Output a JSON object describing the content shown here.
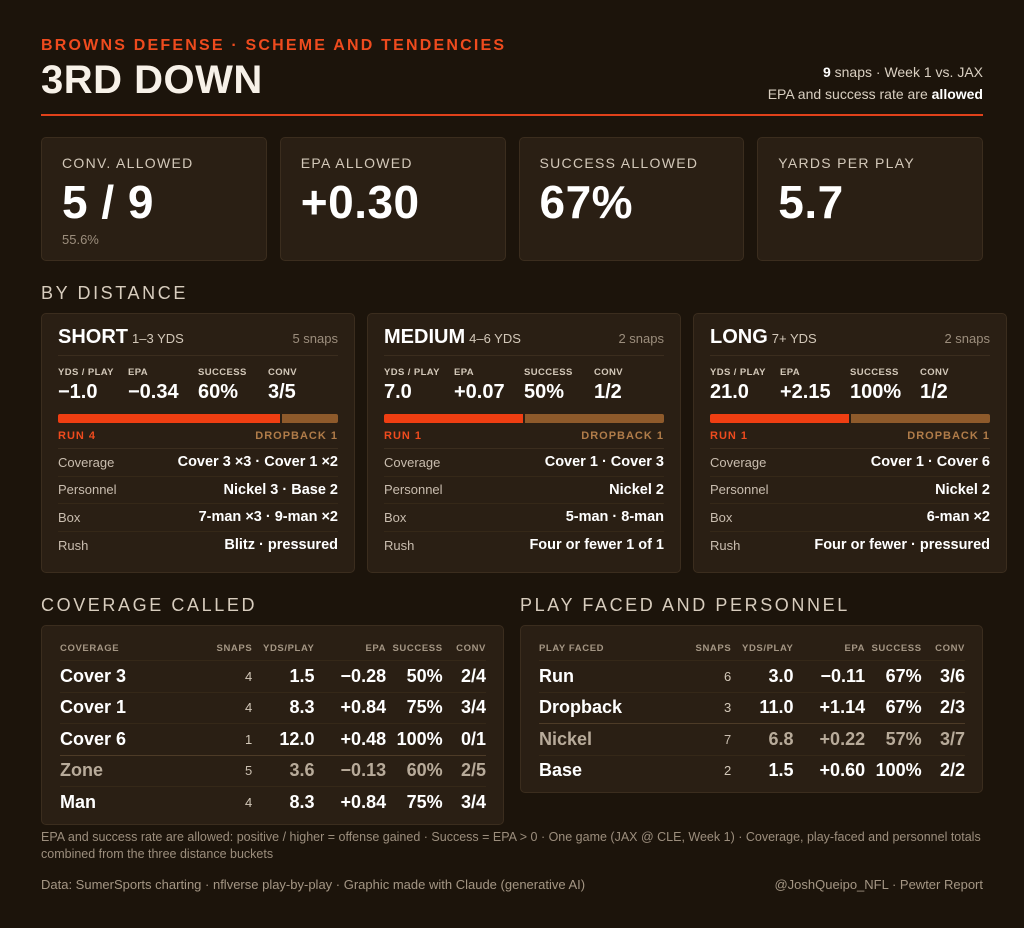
{
  "header": {
    "kicker": "BROWNS DEFENSE · SCHEME AND TENDENCIES",
    "title": "3RD DOWN",
    "snaps": "9",
    "snaps_suffix": " snaps · Week 1 vs. JAX",
    "epa_note_prefix": "EPA and success rate are ",
    "epa_note_bold": "allowed"
  },
  "stats": [
    {
      "label": "CONV. ALLOWED",
      "value": "5 / 9",
      "sub": "55.6%"
    },
    {
      "label": "EPA ALLOWED",
      "value": "+0.30",
      "sub": ""
    },
    {
      "label": "SUCCESS ALLOWED",
      "value": "67%",
      "sub": ""
    },
    {
      "label": "YARDS PER PLAY",
      "value": "5.7",
      "sub": ""
    }
  ],
  "sections": {
    "by_distance": "BY DISTANCE",
    "coverage": "COVERAGE CALLED",
    "play_faced": "PLAY FACED AND PERSONNEL"
  },
  "distance": [
    {
      "name": "SHORT",
      "range": "1–3 YDS",
      "snaps": "5 snaps",
      "stat_labels": [
        "YDS / PLAY",
        "EPA",
        "SUCCESS",
        "CONV"
      ],
      "stat_values": [
        "−1.0",
        "−0.34",
        "60%",
        "3/5"
      ],
      "run_share": 0.8,
      "run_label": "RUN 4",
      "dropback_label": "DROPBACK 1",
      "rows": [
        {
          "k": "Coverage",
          "v": "Cover 3 ×3 · Cover 1 ×2"
        },
        {
          "k": "Personnel",
          "v": "Nickel 3 · Base 2"
        },
        {
          "k": "Box",
          "v": "7-man ×3 · 9-man ×2"
        },
        {
          "k": "Rush",
          "v": "Blitz · pressured"
        }
      ]
    },
    {
      "name": "MEDIUM",
      "range": "4–6 YDS",
      "snaps": "2 snaps",
      "stat_labels": [
        "YDS / PLAY",
        "EPA",
        "SUCCESS",
        "CONV"
      ],
      "stat_values": [
        "7.0",
        "+0.07",
        "50%",
        "1/2"
      ],
      "run_share": 0.5,
      "run_label": "RUN 1",
      "dropback_label": "DROPBACK 1",
      "rows": [
        {
          "k": "Coverage",
          "v": "Cover 1 · Cover 3"
        },
        {
          "k": "Personnel",
          "v": "Nickel 2"
        },
        {
          "k": "Box",
          "v": "5-man · 8-man"
        },
        {
          "k": "Rush",
          "v": "Four or fewer 1 of 1"
        }
      ]
    },
    {
      "name": "LONG",
      "range": "7+ YDS",
      "snaps": "2 snaps",
      "stat_labels": [
        "YDS / PLAY",
        "EPA",
        "SUCCESS",
        "CONV"
      ],
      "stat_values": [
        "21.0",
        "+2.15",
        "100%",
        "1/2"
      ],
      "run_share": 0.5,
      "run_label": "RUN 1",
      "dropback_label": "DROPBACK 1",
      "rows": [
        {
          "k": "Coverage",
          "v": "Cover 1 · Cover 6"
        },
        {
          "k": "Personnel",
          "v": "Nickel 2"
        },
        {
          "k": "Box",
          "v": "6-man ×2"
        },
        {
          "k": "Rush",
          "v": "Four or fewer · pressured"
        }
      ]
    }
  ],
  "coverage_table": {
    "headers": [
      "COVERAGE",
      "SNAPS",
      "YDS/PLAY",
      "EPA",
      "SUCCESS",
      "CONV"
    ],
    "rows": [
      {
        "name": "Cover 3",
        "snaps": "4",
        "yds": "1.5",
        "epa": "−0.28",
        "succ": "50%",
        "conv": "2/4"
      },
      {
        "name": "Cover 1",
        "snaps": "4",
        "yds": "8.3",
        "epa": "+0.84",
        "succ": "75%",
        "conv": "3/4"
      },
      {
        "name": "Cover 6",
        "snaps": "1",
        "yds": "12.0",
        "epa": "+0.48",
        "succ": "100%",
        "conv": "0/1"
      },
      {
        "name": "Zone",
        "snaps": "5",
        "yds": "3.6",
        "epa": "−0.13",
        "succ": "60%",
        "conv": "2/5"
      },
      {
        "name": "Man",
        "snaps": "4",
        "yds": "8.3",
        "epa": "+0.84",
        "succ": "75%",
        "conv": "3/4"
      }
    ]
  },
  "play_table": {
    "headers": [
      "PLAY FACED",
      "SNAPS",
      "YDS/PLAY",
      "EPA",
      "SUCCESS",
      "CONV"
    ],
    "rows": [
      {
        "name": "Run",
        "snaps": "6",
        "yds": "3.0",
        "epa": "−0.11",
        "succ": "67%",
        "conv": "3/6"
      },
      {
        "name": "Dropback",
        "snaps": "3",
        "yds": "11.0",
        "epa": "+1.14",
        "succ": "67%",
        "conv": "2/3"
      },
      {
        "name": "Nickel",
        "snaps": "7",
        "yds": "6.8",
        "epa": "+0.22",
        "succ": "57%",
        "conv": "3/7"
      },
      {
        "name": "Base",
        "snaps": "2",
        "yds": "1.5",
        "epa": "+0.60",
        "succ": "100%",
        "conv": "2/2"
      }
    ]
  },
  "footnote": "EPA and success rate are allowed: positive / higher = offense gained · Success = EPA > 0 · One game (JAX @ CLE, Week 1) · Coverage, play-faced and personnel totals combined from the three distance buckets",
  "credit_left": "Data: SumerSports charting · nflverse play-by-play · Graphic made with Claude (generative AI)",
  "credit_right": "@JoshQueipo_NFL · Pewter Report",
  "colors": {
    "accent": "#ef4b1e",
    "run_bar": "#ef3e12",
    "dropback_bar": "#8e5a2b",
    "background": "#1c140b",
    "card": "#2a1f14"
  }
}
